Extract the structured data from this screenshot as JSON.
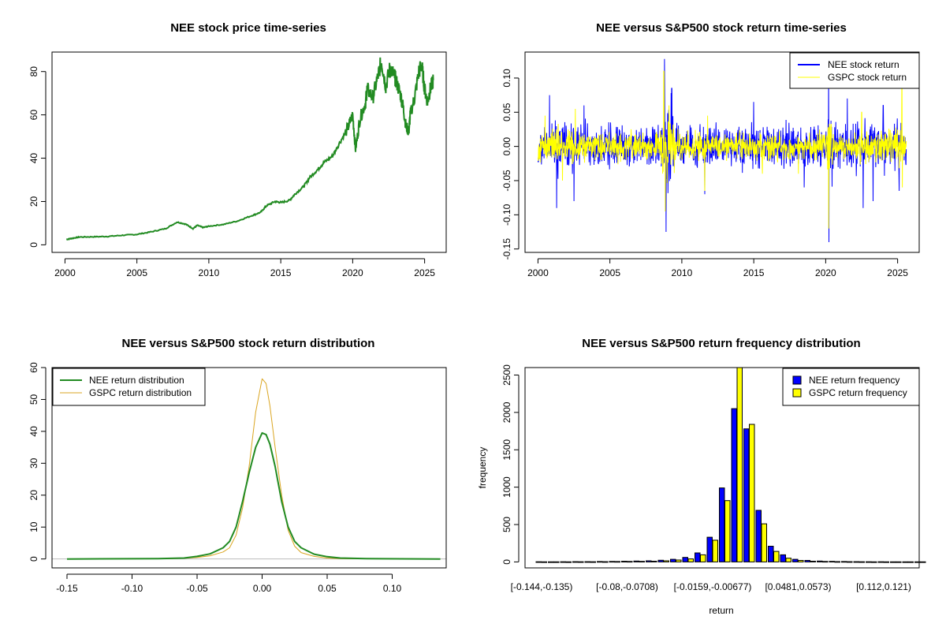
{
  "colors": {
    "nee_price": "#228B22",
    "nee_return": "#0000FF",
    "gspc_return": "#FFFF00",
    "nee_density": "#228B22",
    "gspc_density": "#DAA520",
    "nee_hist": "#0000FF",
    "gspc_hist": "#FFFF00"
  },
  "chart_data": [
    {
      "id": "price",
      "type": "line",
      "title": "NEE stock price time-series",
      "xlabel": "",
      "ylabel": "",
      "xlim": [
        2000,
        2025.6
      ],
      "ylim": [
        0,
        87
      ],
      "xticks": [
        2000,
        2005,
        2010,
        2015,
        2020,
        2025
      ],
      "xtick_labels": [
        "2000",
        "2005",
        "2010",
        "2015",
        "2020",
        "2025"
      ],
      "yticks": [
        0,
        20,
        40,
        60,
        80
      ],
      "ytick_labels": [
        "0",
        "20",
        "40",
        "60",
        "80"
      ],
      "series": [
        {
          "name": "NEE stock price",
          "x": [
            2000.1,
            2000.5,
            2001,
            2002,
            2003,
            2004,
            2005,
            2006,
            2007,
            2007.8,
            2008.4,
            2008.9,
            2009.2,
            2009.6,
            2010,
            2011,
            2012,
            2013,
            2013.6,
            2014,
            2014.6,
            2015,
            2015.6,
            2016,
            2016.6,
            2017,
            2017.6,
            2018,
            2018.6,
            2019,
            2019.6,
            2020,
            2020.2,
            2020.5,
            2020.9,
            2021,
            2021.4,
            2021.8,
            2022,
            2022.3,
            2022.6,
            2022.9,
            2023,
            2023.3,
            2023.5,
            2023.7,
            2023.9,
            2024,
            2024.3,
            2024.6,
            2024.8,
            2025,
            2025.2,
            2025.4,
            2025.6
          ],
          "y": [
            2.5,
            3.0,
            3.6,
            3.7,
            3.9,
            4.4,
            4.8,
            6.0,
            7.5,
            10.5,
            9.5,
            7.5,
            9.0,
            8.0,
            8.6,
            9.4,
            11.0,
            13.5,
            15.0,
            18.0,
            20.0,
            19.5,
            20.5,
            23.5,
            27.0,
            31.0,
            35.0,
            38.0,
            41.0,
            46.0,
            53.0,
            60.0,
            44.0,
            58.0,
            66.0,
            72.0,
            68.0,
            79.0,
            85.0,
            73.0,
            82.0,
            78.0,
            76.0,
            70.0,
            64.0,
            55.0,
            52.0,
            60.0,
            68.0,
            80.0,
            83.0,
            72.0,
            66.0,
            72.0,
            76.0
          ]
        }
      ]
    },
    {
      "id": "returns",
      "type": "line",
      "title": "NEE versus S&P500 stock return time-series",
      "xlabel": "",
      "ylabel": "",
      "xlim": [
        2000,
        2025.6
      ],
      "ylim": [
        -0.15,
        0.135
      ],
      "xticks": [
        2000,
        2005,
        2010,
        2015,
        2020,
        2025
      ],
      "xtick_labels": [
        "2000",
        "2005",
        "2010",
        "2015",
        "2020",
        "2025"
      ],
      "yticks": [
        -0.15,
        -0.1,
        -0.05,
        0.0,
        0.05,
        0.1
      ],
      "ytick_labels": [
        "-0.15",
        "-0.10",
        "-0.05",
        "0.00",
        "0.05",
        "0.10"
      ],
      "legend": "top-right",
      "series": [
        {
          "name": "NEE stock return",
          "style": "noise",
          "base_vol": 0.018,
          "spikes": [
            [
              2000.8,
              0.075
            ],
            [
              2001.3,
              -0.09
            ],
            [
              2002.5,
              -0.08
            ],
            [
              2003.2,
              0.06
            ],
            [
              2008.8,
              0.128
            ],
            [
              2008.9,
              -0.125
            ],
            [
              2009.3,
              0.085
            ],
            [
              2011.6,
              -0.07
            ],
            [
              2015.0,
              0.065
            ],
            [
              2018.5,
              -0.06
            ],
            [
              2020.2,
              0.115
            ],
            [
              2020.22,
              -0.14
            ],
            [
              2021.5,
              0.07
            ],
            [
              2022.6,
              -0.09
            ],
            [
              2023.3,
              -0.08
            ],
            [
              2024.0,
              0.06
            ],
            [
              2025.1,
              -0.065
            ]
          ]
        },
        {
          "name": "GSPC stock return",
          "style": "noise",
          "base_vol": 0.012,
          "spikes": [
            [
              2000.5,
              0.045
            ],
            [
              2001.7,
              -0.05
            ],
            [
              2002.6,
              0.055
            ],
            [
              2008.75,
              0.11
            ],
            [
              2008.85,
              -0.095
            ],
            [
              2009.1,
              0.06
            ],
            [
              2011.6,
              -0.065
            ],
            [
              2011.8,
              0.045
            ],
            [
              2015.6,
              -0.04
            ],
            [
              2018.1,
              -0.04
            ],
            [
              2020.2,
              0.09
            ],
            [
              2020.21,
              -0.12
            ],
            [
              2022.5,
              0.05
            ],
            [
              2025.3,
              0.085
            ],
            [
              2025.32,
              -0.06
            ]
          ]
        }
      ]
    },
    {
      "id": "density",
      "type": "line",
      "title": "NEE versus S&P500 stock return distribution",
      "xlabel": "",
      "ylabel": "",
      "xlim": [
        -0.15,
        0.14
      ],
      "ylim": [
        -1.5,
        60
      ],
      "xticks": [
        -0.15,
        -0.1,
        -0.05,
        0.0,
        0.05,
        0.1
      ],
      "xtick_labels": [
        "-0.15",
        "-0.10",
        "-0.05",
        "0.00",
        "0.05",
        "0.10"
      ],
      "yticks": [
        0,
        10,
        20,
        30,
        40,
        50,
        60
      ],
      "ytick_labels": [
        "0",
        "10",
        "20",
        "30",
        "40",
        "50",
        "60"
      ],
      "legend": "top-left",
      "series": [
        {
          "name": "NEE return distribution",
          "x": [
            -0.15,
            -0.08,
            -0.06,
            -0.05,
            -0.04,
            -0.03,
            -0.025,
            -0.02,
            -0.015,
            -0.01,
            -0.005,
            0.0,
            0.003,
            0.006,
            0.01,
            0.015,
            0.02,
            0.025,
            0.03,
            0.04,
            0.05,
            0.06,
            0.08,
            0.137
          ],
          "y": [
            0.0,
            0.1,
            0.3,
            0.8,
            1.6,
            3.5,
            5.5,
            10.0,
            18.0,
            27.0,
            35.0,
            39.5,
            39.0,
            36.0,
            29.0,
            18.0,
            10.0,
            5.5,
            3.5,
            1.5,
            0.7,
            0.3,
            0.1,
            0.0
          ]
        },
        {
          "name": "GSPC return distribution",
          "x": [
            -0.15,
            -0.08,
            -0.06,
            -0.05,
            -0.04,
            -0.03,
            -0.025,
            -0.02,
            -0.015,
            -0.01,
            -0.005,
            0.0,
            0.003,
            0.006,
            0.01,
            0.015,
            0.02,
            0.025,
            0.03,
            0.04,
            0.05,
            0.06,
            0.08,
            0.137
          ],
          "y": [
            0.0,
            0.05,
            0.2,
            0.5,
            1.0,
            2.2,
            3.5,
            7.5,
            16.0,
            29.0,
            46.0,
            56.5,
            55.0,
            48.0,
            35.0,
            20.0,
            9.0,
            4.0,
            2.0,
            0.8,
            0.3,
            0.1,
            0.05,
            0.0
          ]
        }
      ]
    },
    {
      "id": "histogram",
      "type": "bar",
      "title": "NEE versus S&P500 return frequency distribution",
      "xlabel": "return",
      "ylabel": "frequency",
      "ylim": [
        0,
        2600
      ],
      "yticks": [
        0,
        500,
        1000,
        1500,
        2000,
        2500
      ],
      "ytick_labels": [
        "0",
        "500",
        "1000",
        "1500",
        "2000",
        "2500"
      ],
      "legend": "top-right",
      "category_labels": [
        {
          "index": 0,
          "label": "[-0.144,-0.135)"
        },
        {
          "index": 7,
          "label": "[-0.08,-0.0708)"
        },
        {
          "index": 14,
          "label": "[-0.0159,-0.00677)"
        },
        {
          "index": 21,
          "label": "[0.0481,0.0573)"
        },
        {
          "index": 28,
          "label": "[0.112,0.121)"
        }
      ],
      "series": [
        {
          "name": "NEE return frequency",
          "values": [
            2,
            1,
            2,
            3,
            3,
            5,
            7,
            9,
            12,
            15,
            22,
            35,
            60,
            120,
            330,
            990,
            2050,
            1780,
            690,
            210,
            95,
            35,
            20,
            12,
            8,
            5,
            3,
            2,
            2,
            1,
            1,
            1
          ]
        },
        {
          "name": "GSPC return frequency",
          "values": [
            1,
            1,
            1,
            2,
            2,
            3,
            5,
            6,
            8,
            10,
            15,
            25,
            40,
            95,
            290,
            820,
            2620,
            1840,
            510,
            140,
            50,
            20,
            10,
            6,
            4,
            3,
            2,
            1,
            1,
            1,
            1,
            1
          ]
        }
      ]
    }
  ]
}
